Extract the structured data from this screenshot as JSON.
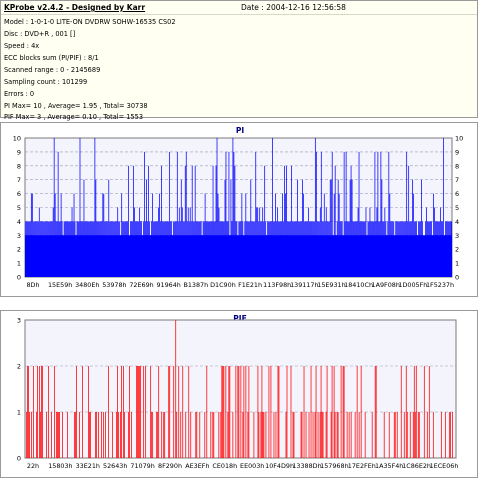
{
  "header": {
    "title": "KProbe v2.4.2 - Designed by Karr",
    "date": "Date : 2004-12-16 12:56:58",
    "lines": [
      "Model : 1-0-1-0 LITE-ON DVDRW SOHW-16535 CS02",
      "Disc : DVD+R , 001 []",
      "Speed : 4x",
      "ECC blocks sum (PI/PIF) : 8/1",
      "Scanned range : 0 - 2145689",
      "Sampling count : 101299",
      "Errors : 0",
      "PI Max= 10 , Average= 1.95 , Total= 30738",
      "PIF Max= 3 , Average= 0.10 , Total= 1553"
    ]
  },
  "chart_data": [
    {
      "type": "bar",
      "title": "PI",
      "ylim": [
        0,
        10
      ],
      "yticks": [
        0,
        1,
        2,
        3,
        4,
        5,
        6,
        7,
        8,
        9,
        10
      ],
      "xtick_labels": [
        "8Dh",
        "15E59h",
        "3480Eh",
        "53978h",
        "72E69h",
        "91964h",
        "B1387h",
        "D1C90h",
        "F1E21h",
        "113F98h",
        "139117h",
        "15E931h",
        "18410Ch",
        "1A9F08h",
        "1D005Fh",
        "1F5237h"
      ],
      "grid": true,
      "color": "#0000ff",
      "bar_count": 430,
      "baseline_values": [
        4,
        3
      ],
      "spike_values": [
        5,
        6,
        7,
        8,
        9,
        10
      ],
      "max": 10,
      "average": 1.95
    },
    {
      "type": "bar",
      "title": "PIF",
      "ylim": [
        0,
        3
      ],
      "yticks": [
        0,
        1,
        2,
        3
      ],
      "xtick_labels": [
        "22h",
        "15803h",
        "33E21h",
        "52643h",
        "71079h",
        "8F290h",
        "AE3EFh",
        "CE018h",
        "EE003h",
        "10F4D9h",
        "13388Dh",
        "157968h",
        "17E2FEh",
        "1A35F4h",
        "1C86E2h",
        "1ECE06h"
      ],
      "grid": true,
      "color": "#ff0000",
      "bar_count": 430,
      "spike_values": [
        1,
        2,
        3
      ],
      "max": 3,
      "average": 0.1
    }
  ]
}
